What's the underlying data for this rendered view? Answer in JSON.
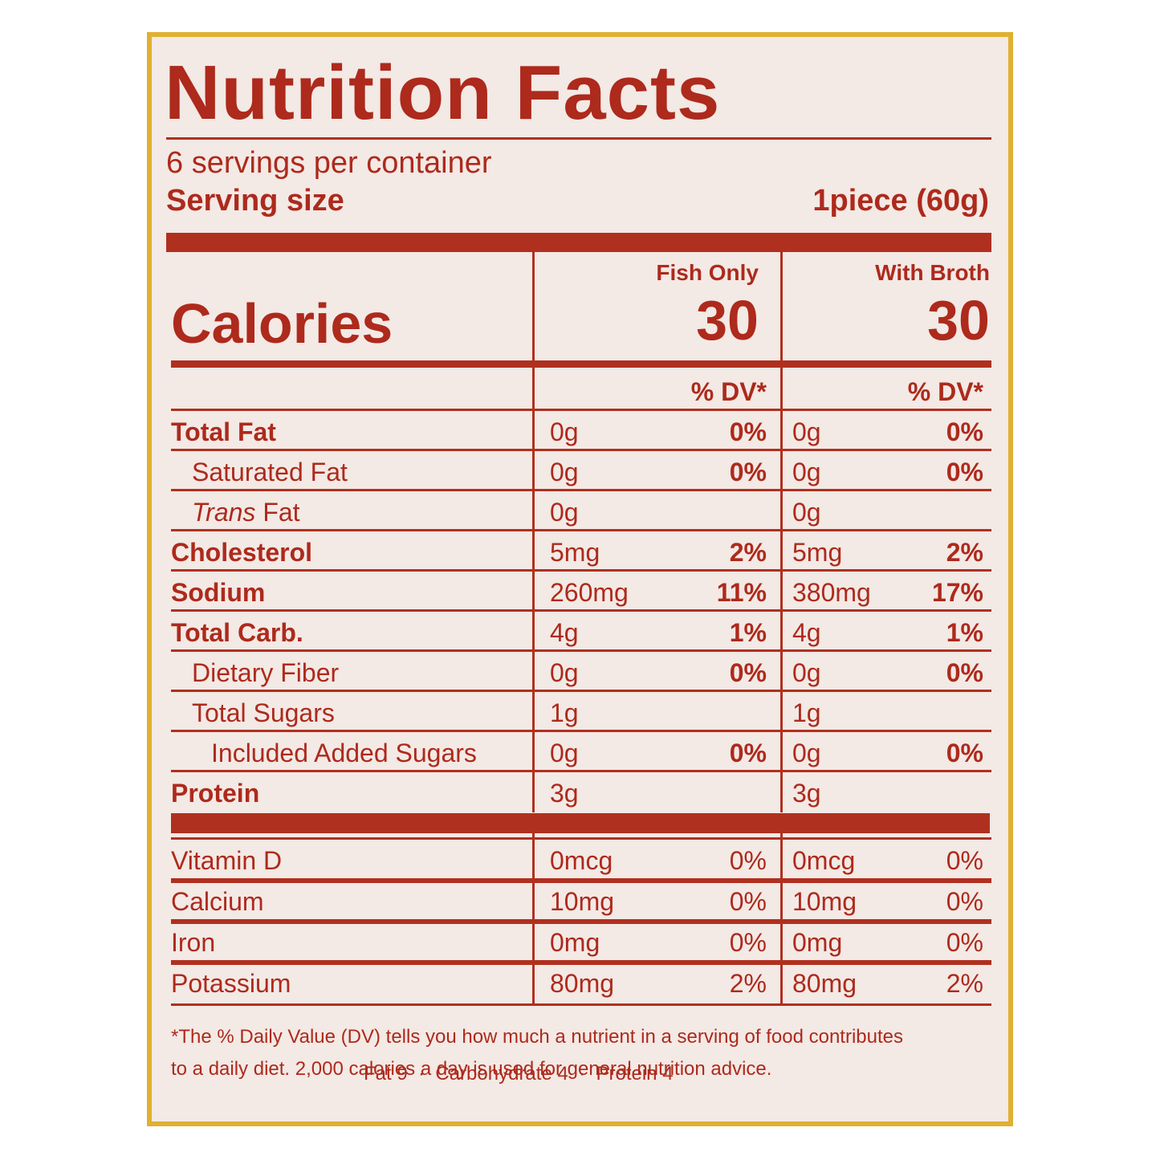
{
  "title": "Nutrition Facts",
  "servings": "6 servings per container",
  "serving_size": {
    "label": "Serving size",
    "value": "1piece (60g)"
  },
  "calories_label": "Calories",
  "columns": [
    {
      "name": "Fish Only",
      "calories": "30",
      "dv_header": "% DV*"
    },
    {
      "name": "With Broth",
      "calories": "30",
      "dv_header": "% DV*"
    }
  ],
  "nutrients": [
    {
      "name": "Total Fat",
      "fish": {
        "amount": "0g",
        "dv": "0%"
      },
      "broth": {
        "amount": "0g",
        "dv": "0%"
      }
    },
    {
      "name": "Saturated Fat",
      "fish": {
        "amount": "0g",
        "dv": "0%"
      },
      "broth": {
        "amount": "0g",
        "dv": "0%"
      }
    },
    {
      "name": "Trans Fat",
      "fish": {
        "amount": "0g"
      },
      "broth": {
        "amount": "0g"
      }
    },
    {
      "name": "Cholesterol",
      "fish": {
        "amount": "5mg",
        "dv": "2%"
      },
      "broth": {
        "amount": "5mg",
        "dv": "2%"
      }
    },
    {
      "name": "Sodium",
      "fish": {
        "amount": "260mg",
        "dv": "11%"
      },
      "broth": {
        "amount": "380mg",
        "dv": "17%"
      }
    },
    {
      "name": "Total Carb.",
      "fish": {
        "amount": "4g",
        "dv": "1%"
      },
      "broth": {
        "amount": "4g",
        "dv": "1%"
      }
    },
    {
      "name": "Dietary Fiber",
      "fish": {
        "amount": "0g",
        "dv": "0%"
      },
      "broth": {
        "amount": "0g",
        "dv": "0%"
      }
    },
    {
      "name": "Total Sugars",
      "fish": {
        "amount": "1g"
      },
      "broth": {
        "amount": "1g"
      }
    },
    {
      "name": "Included Added Sugars",
      "fish": {
        "amount": "0g",
        "dv": "0%"
      },
      "broth": {
        "amount": "0g",
        "dv": "0%"
      }
    },
    {
      "name": "Protein",
      "fish": {
        "amount": "3g"
      },
      "broth": {
        "amount": "3g"
      }
    }
  ],
  "vitamins": [
    {
      "name": "Vitamin D",
      "fish": {
        "amount": "0mcg",
        "dv": "0%"
      },
      "broth": {
        "amount": "0mcg",
        "dv": "0%"
      }
    },
    {
      "name": "Calcium",
      "fish": {
        "amount": "10mg",
        "dv": "0%"
      },
      "broth": {
        "amount": "10mg",
        "dv": "0%"
      }
    },
    {
      "name": "Iron",
      "fish": {
        "amount": "0mg",
        "dv": "0%"
      },
      "broth": {
        "amount": "0mg",
        "dv": "0%"
      }
    },
    {
      "name": "Potassium",
      "fish": {
        "amount": "80mg",
        "dv": "2%"
      },
      "broth": {
        "amount": "80mg",
        "dv": "2%"
      }
    }
  ],
  "footnote": [
    "*The % Daily Value (DV) tells you how much a nutrient in a serving of food contributes",
    "to a daily diet. 2,000 calories a day is used for general nutrition advice."
  ],
  "calories_per_gram": [
    "Fat 9",
    "Carbohydrate 4",
    "Protein 4"
  ]
}
